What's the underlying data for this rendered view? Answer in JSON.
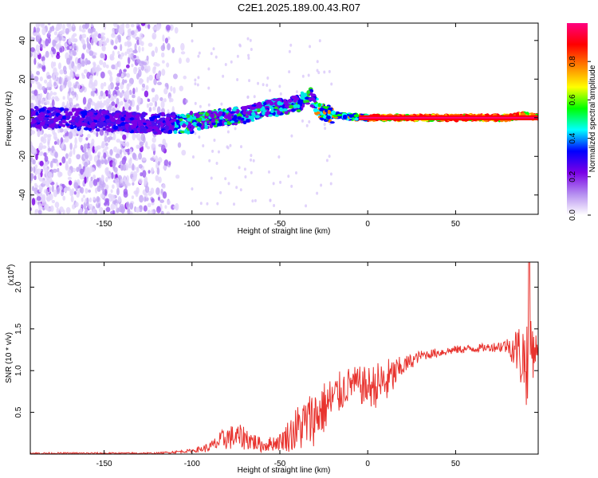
{
  "title": "C2E1.2025.189.00.43.R07",
  "chart_data": [
    {
      "type": "heatmap",
      "xlabel": "Height of straight line (km)",
      "ylabel": "Frequency (Hz)",
      "xlim": [
        -192,
        97
      ],
      "ylim": [
        -50,
        49
      ],
      "xticks": [
        -150,
        -100,
        -50,
        0,
        50
      ],
      "yticks": [
        -40,
        -20,
        0,
        20,
        40
      ],
      "ridge": [
        {
          "x": -192,
          "y": 0.5
        },
        {
          "x": -150,
          "y": -1.5
        },
        {
          "x": -120,
          "y": -3
        },
        {
          "x": -100,
          "y": -2.5
        },
        {
          "x": -85,
          "y": 0
        },
        {
          "x": -70,
          "y": 1.5
        },
        {
          "x": -55,
          "y": 5
        },
        {
          "x": -40,
          "y": 7
        },
        {
          "x": -33,
          "y": 12
        },
        {
          "x": -28,
          "y": 4
        },
        {
          "x": -20,
          "y": 1.5
        },
        {
          "x": -10,
          "y": 0.5
        },
        {
          "x": 0,
          "y": 0
        },
        {
          "x": 80,
          "y": 0
        },
        {
          "x": 90,
          "y": 1.5
        },
        {
          "x": 97,
          "y": 0
        }
      ],
      "grid": false
    },
    {
      "type": "line",
      "xlabel": "Height of straight line (km)",
      "ylabel": "SNR (10 * v/v)",
      "scale_label": "(x10",
      "scale_exp": "4",
      "scale_close": ")",
      "xlim": [
        -192,
        97
      ],
      "ylim": [
        0,
        2.3
      ],
      "xticks": [
        -150,
        -100,
        -50,
        0,
        50
      ],
      "yticks": [
        0.5,
        1.0,
        1.5,
        2.0
      ],
      "ytick_labels": [
        "0.5",
        "1.0",
        "1.5",
        "2.0"
      ],
      "series": [
        {
          "color": "#e8332e",
          "envelope": [
            {
              "x": -192,
              "y": 0.01,
              "spread": 0.01
            },
            {
              "x": -120,
              "y": 0.01,
              "spread": 0.01
            },
            {
              "x": -100,
              "y": 0.04,
              "spread": 0.02
            },
            {
              "x": -90,
              "y": 0.08,
              "spread": 0.06
            },
            {
              "x": -80,
              "y": 0.2,
              "spread": 0.15
            },
            {
              "x": -70,
              "y": 0.2,
              "spread": 0.15
            },
            {
              "x": -60,
              "y": 0.1,
              "spread": 0.08
            },
            {
              "x": -50,
              "y": 0.15,
              "spread": 0.1
            },
            {
              "x": -40,
              "y": 0.3,
              "spread": 0.3
            },
            {
              "x": -30,
              "y": 0.45,
              "spread": 0.35
            },
            {
              "x": -20,
              "y": 0.65,
              "spread": 0.3
            },
            {
              "x": -10,
              "y": 0.85,
              "spread": 0.2
            },
            {
              "x": 0,
              "y": 0.8,
              "spread": 0.25
            },
            {
              "x": 10,
              "y": 0.85,
              "spread": 0.3
            },
            {
              "x": 20,
              "y": 1.05,
              "spread": 0.12
            },
            {
              "x": 30,
              "y": 1.18,
              "spread": 0.06
            },
            {
              "x": 50,
              "y": 1.25,
              "spread": 0.05
            },
            {
              "x": 70,
              "y": 1.28,
              "spread": 0.05
            },
            {
              "x": 80,
              "y": 1.3,
              "spread": 0.1
            },
            {
              "x": 85,
              "y": 1.25,
              "spread": 0.3
            },
            {
              "x": 90,
              "y": 1.1,
              "spread": 0.55
            },
            {
              "x": 93,
              "y": 1.3,
              "spread": 0.5
            },
            {
              "x": 97,
              "y": 1.25,
              "spread": 0.05
            }
          ]
        }
      ],
      "grid": false
    }
  ],
  "colorbar": {
    "label": "Normalized spectral amplitude",
    "range": [
      0,
      1
    ],
    "ticks": [
      0.0,
      0.2,
      0.4,
      0.6,
      0.8
    ],
    "tick_labels": [
      "0.0",
      "0.2",
      "0.4",
      "0.6",
      "0.8"
    ],
    "colors": [
      "#ffffff",
      "#b48cf0",
      "#7a00e6",
      "#0000ff",
      "#00ffff",
      "#00ff00",
      "#ffff00",
      "#ff8000",
      "#ff0000",
      "#ff0080"
    ]
  }
}
